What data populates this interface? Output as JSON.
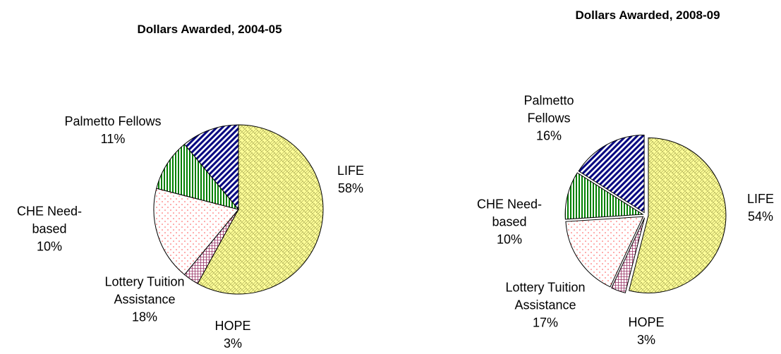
{
  "chart_data": [
    {
      "type": "pie",
      "title": "Dollars Awarded, 2004-05",
      "categories": [
        "LIFE",
        "HOPE",
        "Lottery Tuition Assistance",
        "CHE Need-based",
        "Palmetto Fellows"
      ],
      "values": [
        58,
        3,
        18,
        10,
        11
      ],
      "value_labels": [
        "58%",
        "3%",
        "18%",
        "10%",
        "11%"
      ],
      "colors": [
        "#ffff99",
        "#993366",
        "#ff4d4d",
        "#008000",
        "#000080"
      ]
    },
    {
      "type": "pie",
      "title": "Dollars Awarded, 2008-09",
      "categories": [
        "LIFE",
        "HOPE",
        "Lottery Tuition Assistance",
        "CHE Need-based",
        "Palmetto Fellows"
      ],
      "values": [
        54,
        3,
        17,
        10,
        16
      ],
      "value_labels": [
        "54%",
        "3%",
        "17%",
        "10%",
        "16%"
      ],
      "colors": [
        "#ffff99",
        "#993366",
        "#ff4d4d",
        "#008000",
        "#000080"
      ]
    }
  ]
}
